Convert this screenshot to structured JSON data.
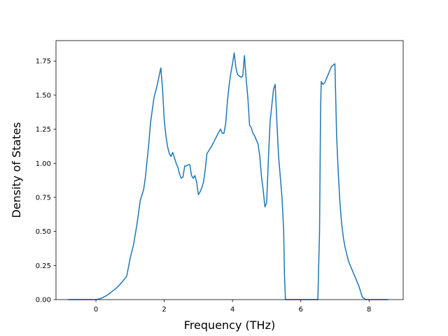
{
  "chart_data": {
    "type": "line",
    "title": "",
    "xlabel": "Frequency (THz)",
    "ylabel": "Density of States",
    "xlim": [
      -1.17,
      9.0
    ],
    "ylim": [
      0.0,
      1.9
    ],
    "xticks": [
      0,
      2,
      4,
      6,
      8
    ],
    "xtick_labels": [
      "0",
      "2",
      "4",
      "6",
      "8"
    ],
    "yticks": [
      0.0,
      0.25,
      0.5,
      0.75,
      1.0,
      1.25,
      1.5,
      1.75
    ],
    "ytick_labels": [
      "0.00",
      "0.25",
      "0.50",
      "0.75",
      "1.00",
      "1.25",
      "1.50",
      "1.75"
    ],
    "grid": false,
    "legend": "none",
    "color": "#1f77b4",
    "series": [
      {
        "x": [
          -0.8,
          -0.5,
          -0.2,
          0.0,
          0.1,
          0.2,
          0.3,
          0.4,
          0.5,
          0.6,
          0.7,
          0.8,
          0.9,
          1.0,
          1.1,
          1.2,
          1.3,
          1.4,
          1.45,
          1.55,
          1.6,
          1.7,
          1.8,
          1.9,
          1.95,
          2.0,
          2.05,
          2.1,
          2.15,
          2.2,
          2.25,
          2.3,
          2.35,
          2.4,
          2.45,
          2.5,
          2.55,
          2.6,
          2.65,
          2.7,
          2.75,
          2.8,
          2.85,
          2.9,
          2.95,
          3.0,
          3.05,
          3.1,
          3.15,
          3.2,
          3.25,
          3.3,
          3.4,
          3.5,
          3.6,
          3.65,
          3.7,
          3.75,
          3.8,
          3.85,
          3.9,
          3.95,
          4.0,
          4.05,
          4.1,
          4.15,
          4.2,
          4.25,
          4.3,
          4.35,
          4.4,
          4.45,
          4.5,
          4.55,
          4.6,
          4.65,
          4.7,
          4.75,
          4.8,
          4.85,
          4.9,
          4.95,
          5.0,
          5.05,
          5.1,
          5.15,
          5.2,
          5.25,
          5.3,
          5.35,
          5.4,
          5.45,
          5.5,
          5.52,
          5.55,
          5.6,
          6.0,
          6.5,
          6.55,
          6.58,
          6.6,
          6.62,
          6.65,
          6.7,
          6.75,
          6.8,
          6.85,
          6.9,
          6.95,
          7.0,
          7.05,
          7.1,
          7.15,
          7.2,
          7.25,
          7.3,
          7.4,
          7.5,
          7.6,
          7.7,
          7.75,
          7.8,
          7.9,
          8.2,
          8.55
        ],
        "y": [
          0.0,
          0.0,
          0.0,
          0.0,
          0.005,
          0.015,
          0.028,
          0.045,
          0.065,
          0.085,
          0.11,
          0.14,
          0.17,
          0.3,
          0.4,
          0.55,
          0.73,
          0.81,
          0.9,
          1.15,
          1.3,
          1.48,
          1.58,
          1.7,
          1.55,
          1.32,
          1.2,
          1.12,
          1.07,
          1.05,
          1.08,
          1.04,
          1.0,
          0.97,
          0.92,
          0.89,
          0.9,
          0.98,
          0.98,
          0.99,
          0.99,
          0.91,
          0.89,
          0.91,
          0.86,
          0.77,
          0.79,
          0.82,
          0.86,
          0.95,
          1.07,
          1.09,
          1.13,
          1.18,
          1.23,
          1.25,
          1.22,
          1.22,
          1.29,
          1.45,
          1.57,
          1.66,
          1.73,
          1.81,
          1.7,
          1.65,
          1.64,
          1.63,
          1.64,
          1.79,
          1.62,
          1.48,
          1.28,
          1.26,
          1.22,
          1.2,
          1.17,
          1.14,
          1.05,
          0.9,
          0.8,
          0.68,
          0.71,
          1.02,
          1.3,
          1.42,
          1.54,
          1.58,
          1.3,
          1.05,
          0.9,
          0.75,
          0.5,
          0.2,
          0.0,
          0.0,
          0.0,
          0.0,
          0.5,
          1.4,
          1.6,
          1.59,
          1.58,
          1.59,
          1.62,
          1.65,
          1.68,
          1.71,
          1.72,
          1.73,
          1.2,
          0.92,
          0.7,
          0.55,
          0.45,
          0.38,
          0.28,
          0.22,
          0.16,
          0.1,
          0.06,
          0.02,
          0.0,
          0.0,
          0.0
        ]
      }
    ]
  }
}
